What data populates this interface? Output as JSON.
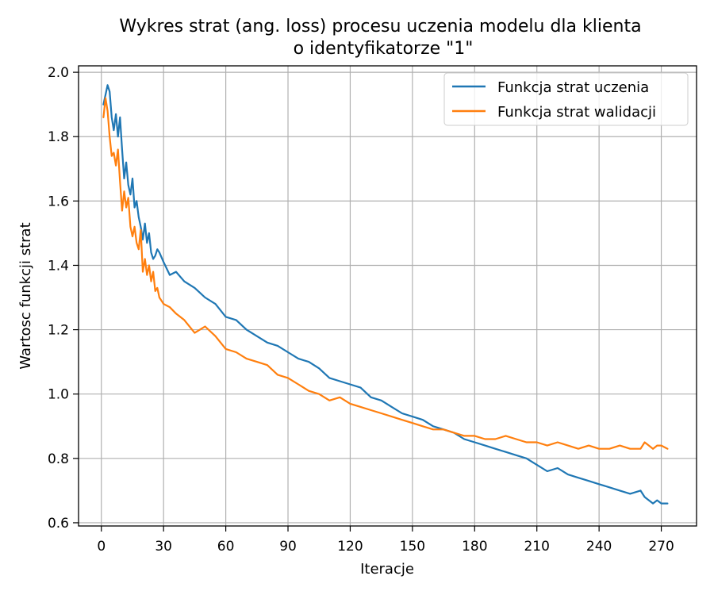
{
  "chart_data": {
    "type": "line",
    "title": "Wykres strat (ang. loss) procesu uczenia modelu dla klienta\no identyfikatorze \"1\"",
    "xlabel": "Iteracje",
    "ylabel": "Wartosc funkcji strat",
    "xlim": [
      -11,
      287
    ],
    "ylim": [
      0.59,
      2.02
    ],
    "xticks": [
      0,
      30,
      60,
      90,
      120,
      150,
      180,
      210,
      240,
      270
    ],
    "yticks": [
      0.6,
      0.8,
      1.0,
      1.2,
      1.4,
      1.6,
      1.8,
      2.0
    ],
    "xtick_labels": [
      "0",
      "30",
      "60",
      "90",
      "120",
      "150",
      "180",
      "210",
      "240",
      "270"
    ],
    "ytick_labels": [
      "0.6",
      "0.8",
      "1.0",
      "1.2",
      "1.4",
      "1.6",
      "1.8",
      "2.0"
    ],
    "grid": true,
    "legend_position": "top-right",
    "series": [
      {
        "name": "Funkcja strat uczenia",
        "color": "#1f77b4",
        "x": [
          1,
          2,
          3,
          4,
          5,
          6,
          7,
          8,
          9,
          10,
          11,
          12,
          13,
          14,
          15,
          16,
          17,
          18,
          19,
          20,
          21,
          22,
          23,
          24,
          25,
          26,
          27,
          28,
          30,
          33,
          36,
          40,
          45,
          50,
          55,
          60,
          65,
          70,
          75,
          80,
          85,
          90,
          95,
          100,
          105,
          110,
          115,
          120,
          125,
          130,
          135,
          140,
          145,
          150,
          155,
          160,
          165,
          170,
          175,
          180,
          185,
          190,
          195,
          200,
          205,
          210,
          215,
          220,
          225,
          230,
          235,
          240,
          245,
          250,
          255,
          260,
          262,
          264,
          266,
          268,
          270,
          273
        ],
        "values": [
          1.9,
          1.93,
          1.96,
          1.94,
          1.86,
          1.82,
          1.87,
          1.8,
          1.86,
          1.76,
          1.67,
          1.72,
          1.65,
          1.62,
          1.67,
          1.58,
          1.6,
          1.55,
          1.52,
          1.48,
          1.53,
          1.47,
          1.5,
          1.44,
          1.42,
          1.43,
          1.45,
          1.44,
          1.41,
          1.37,
          1.38,
          1.35,
          1.33,
          1.3,
          1.28,
          1.24,
          1.23,
          1.2,
          1.18,
          1.16,
          1.15,
          1.13,
          1.11,
          1.1,
          1.08,
          1.05,
          1.04,
          1.03,
          1.02,
          0.99,
          0.98,
          0.96,
          0.94,
          0.93,
          0.92,
          0.9,
          0.89,
          0.88,
          0.86,
          0.85,
          0.84,
          0.83,
          0.82,
          0.81,
          0.8,
          0.78,
          0.76,
          0.77,
          0.75,
          0.74,
          0.73,
          0.72,
          0.71,
          0.7,
          0.69,
          0.7,
          0.68,
          0.67,
          0.66,
          0.67,
          0.66,
          0.66
        ]
      },
      {
        "name": "Funkcja strat walidacji",
        "color": "#ff7f0e",
        "x": [
          1,
          2,
          3,
          4,
          5,
          6,
          7,
          8,
          9,
          10,
          11,
          12,
          13,
          14,
          15,
          16,
          17,
          18,
          19,
          20,
          21,
          22,
          23,
          24,
          25,
          26,
          27,
          28,
          30,
          33,
          36,
          40,
          45,
          50,
          55,
          60,
          65,
          70,
          75,
          80,
          85,
          90,
          95,
          100,
          105,
          110,
          115,
          120,
          125,
          130,
          135,
          140,
          145,
          150,
          155,
          160,
          165,
          170,
          175,
          180,
          185,
          190,
          195,
          200,
          205,
          210,
          215,
          220,
          225,
          230,
          235,
          240,
          245,
          250,
          255,
          260,
          262,
          264,
          266,
          268,
          270,
          273
        ],
        "values": [
          1.86,
          1.92,
          1.88,
          1.8,
          1.74,
          1.75,
          1.71,
          1.76,
          1.66,
          1.57,
          1.63,
          1.58,
          1.61,
          1.52,
          1.49,
          1.52,
          1.47,
          1.45,
          1.51,
          1.38,
          1.42,
          1.37,
          1.4,
          1.35,
          1.38,
          1.32,
          1.33,
          1.3,
          1.28,
          1.27,
          1.25,
          1.23,
          1.19,
          1.21,
          1.18,
          1.14,
          1.13,
          1.11,
          1.1,
          1.09,
          1.06,
          1.05,
          1.03,
          1.01,
          1.0,
          0.98,
          0.99,
          0.97,
          0.96,
          0.95,
          0.94,
          0.93,
          0.92,
          0.91,
          0.9,
          0.89,
          0.89,
          0.88,
          0.87,
          0.87,
          0.86,
          0.86,
          0.87,
          0.86,
          0.85,
          0.85,
          0.84,
          0.85,
          0.84,
          0.83,
          0.84,
          0.83,
          0.83,
          0.84,
          0.83,
          0.83,
          0.85,
          0.84,
          0.83,
          0.84,
          0.84,
          0.83
        ]
      }
    ]
  }
}
